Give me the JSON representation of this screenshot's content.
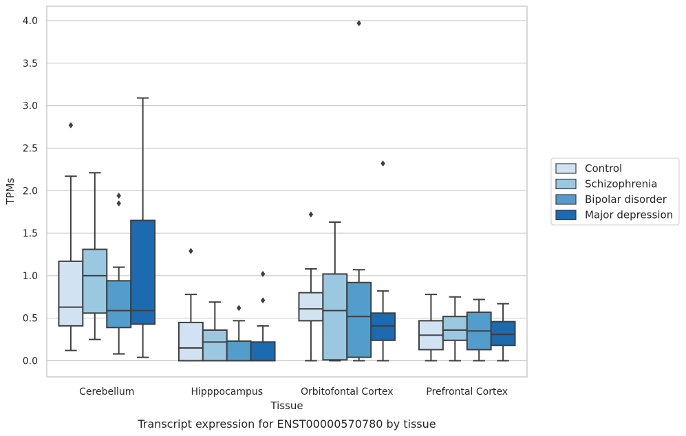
{
  "caption": "Transcript expression for ENST00000570780 by tissue",
  "chart_data": {
    "type": "box",
    "xlabel": "Tissue",
    "ylabel": "TPMs",
    "ylim": [
      -0.19,
      4.17
    ],
    "yticks": [
      0.0,
      0.5,
      1.0,
      1.5,
      2.0,
      2.5,
      3.0,
      3.5,
      4.0
    ],
    "ytick_labels": [
      "0.0",
      "0.5",
      "1.0",
      "1.5",
      "2.0",
      "2.5",
      "3.0",
      "3.5",
      "4.0"
    ],
    "grid": "horizontal",
    "legend_position": "right",
    "categories": [
      "Cerebellum",
      "Hipppocampus",
      "Orbitofontal Cortex",
      "Prefrontal Cortex"
    ],
    "series": [
      {
        "name": "Control",
        "color": "#d1e2f2",
        "boxes": [
          {
            "whislo": 0.12,
            "q1": 0.41,
            "med": 0.63,
            "q3": 1.17,
            "whishi": 2.17,
            "fliers": [
              2.77
            ]
          },
          {
            "whislo": 0.0,
            "q1": 0.0,
            "med": 0.15,
            "q3": 0.45,
            "whishi": 0.78,
            "fliers": [
              1.29
            ]
          },
          {
            "whislo": 0.0,
            "q1": 0.47,
            "med": 0.61,
            "q3": 0.8,
            "whishi": 1.08,
            "fliers": [
              1.72
            ]
          },
          {
            "whislo": 0.0,
            "q1": 0.13,
            "med": 0.3,
            "q3": 0.47,
            "whishi": 0.78,
            "fliers": []
          }
        ]
      },
      {
        "name": "Schizophrenia",
        "color": "#9ac8e0",
        "boxes": [
          {
            "whislo": 0.25,
            "q1": 0.56,
            "med": 1.0,
            "q3": 1.31,
            "whishi": 2.21,
            "fliers": []
          },
          {
            "whislo": 0.0,
            "q1": 0.0,
            "med": 0.22,
            "q3": 0.36,
            "whishi": 0.69,
            "fliers": []
          },
          {
            "whislo": 0.0,
            "q1": 0.01,
            "med": 0.59,
            "q3": 1.02,
            "whishi": 1.63,
            "fliers": []
          },
          {
            "whislo": 0.0,
            "q1": 0.24,
            "med": 0.36,
            "q3": 0.52,
            "whishi": 0.75,
            "fliers": []
          }
        ]
      },
      {
        "name": "Bipolar disorder",
        "color": "#529dcc",
        "boxes": [
          {
            "whislo": 0.08,
            "q1": 0.39,
            "med": 0.59,
            "q3": 0.94,
            "whishi": 1.1,
            "fliers": [
              1.85,
              1.94
            ]
          },
          {
            "whislo": 0.0,
            "q1": 0.0,
            "med": 0.0,
            "q3": 0.23,
            "whishi": 0.47,
            "fliers": [
              0.62
            ]
          },
          {
            "whislo": 0.0,
            "q1": 0.04,
            "med": 0.52,
            "q3": 0.92,
            "whishi": 1.07,
            "fliers": [
              3.97
            ]
          },
          {
            "whislo": 0.0,
            "q1": 0.13,
            "med": 0.35,
            "q3": 0.57,
            "whishi": 0.72,
            "fliers": []
          }
        ]
      },
      {
        "name": "Major depression",
        "color": "#1c6aaf",
        "boxes": [
          {
            "whislo": 0.04,
            "q1": 0.43,
            "med": 0.59,
            "q3": 1.65,
            "whishi": 3.09,
            "fliers": []
          },
          {
            "whislo": 0.0,
            "q1": 0.0,
            "med": 0.0,
            "q3": 0.22,
            "whishi": 0.41,
            "fliers": [
              0.71,
              1.02
            ]
          },
          {
            "whislo": 0.0,
            "q1": 0.24,
            "med": 0.41,
            "q3": 0.56,
            "whishi": 0.82,
            "fliers": [
              2.32
            ]
          },
          {
            "whislo": 0.0,
            "q1": 0.18,
            "med": 0.31,
            "q3": 0.46,
            "whishi": 0.67,
            "fliers": []
          }
        ]
      }
    ]
  }
}
